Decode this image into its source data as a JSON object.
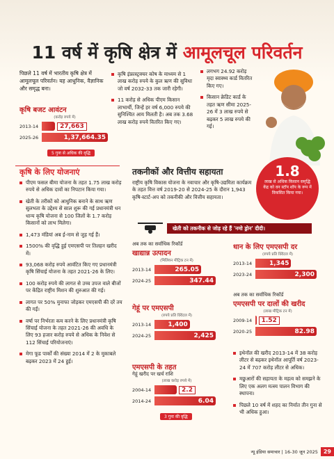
{
  "title": {
    "part1": "11 वर्ष में कृषि क्षेत्र में",
    "part2": "आमूलचूल परिवर्तन"
  },
  "intro": "पिछले 11 वर्ष में भारतीय कृषि क्षेत्र में आमूलचूल परिवर्तन। यह आधुनिक, वैज्ञानिक और समृद्ध बना।",
  "budget": {
    "heading": "कृषि बजट आवंटन",
    "unit": "(करोड़ रुपये में)",
    "categories": [
      "2013-14",
      "2025-26"
    ],
    "values": [
      27663,
      137664.35
    ],
    "value_labels": [
      "27,663",
      "1,37,664.35"
    ],
    "note": "5 गुना से अधिक की वृद्धि"
  },
  "infra_points": [
    "कृषि इंफ्रास्ट्रक्चर कोष के माध्यम से 1 लाख करोड़ रुपये के कुल ऋण की सुविधा जो वर्ष 2032-33 तक जारी रहेगी।",
    "11 करोड़ से अधिक पीएम किसान लाभार्थी, जिन्हें हर वर्ष 6,000 रुपये की सुनिश्चित आय मिलती है। अब तक 3.68 लाख करोड़ रुपये वितरित किए गए।"
  ],
  "card_points": [
    "लगभग 24.92 करोड़ मृदा स्वास्थ्य कार्ड वितरित किए गए।",
    "किसान क्रेडिट कार्ड के तहत ऋण सीमा 2025-26 में 3 लाख रुपये से बढ़कर 5 लाख रुपये की गई।"
  ],
  "schemes": {
    "heading": "कृषि के लिए योजनाएं",
    "points": [
      "पीएम फसल बीमा योजना के तहत 1.75 लाख करोड़ रुपये से अधिक दावों का निपटान किया गया।",
      "खेती के तरीकों को आधुनिक बनाने के साथ ऋण सुलभता के उद्देश्य से साल शुरू की गई प्रधानमंत्री धन धान्य कृषि योजना से 100 जिलों के 1.7 करोड़ किसानों को लाभ मिलेगा।",
      "1,473 मंडियां अब ई-नाम से जुड़ गई हैं।",
      "1500% की वृद्धि हुई एमएसपी पर तिलहन खरीद में।",
      "93,068 करोड़ रुपये आवंटित किए गए प्रधानमंत्री कृषि सिंचाई योजना के तहत 2021-26 के लिए।",
      "100 करोड़ रुपये की लागत से उच्च उपज वाले बीजों पर केंद्रित राष्ट्रीय मिशन की शुरुआत की गई।",
      "लागत पर 50% मुनाफा जोड़कर एमएसपी की दरें तय की गईं।",
      "वर्षा पर निर्भरता कम करने के लिए प्रधानमंत्री कृषि सिंचाई योजना के तहत 2021-26 की अवधि के लिए 93 हजार करोड़ रुपये से अधिक के निवेश से 112 सिंचाई परियोजनाएं।",
      "मेगा फूड पार्कों की संख्या 2014 में 2 के मुकाबले बढ़कर 2023 में 24 हुई।"
    ]
  },
  "tech": {
    "heading": "तकनीकों और वित्तीय सहायता",
    "text": "राष्ट्रीय कृषि विकास योजना के नवाचार और कृषि-उद्यमिता कार्यक्रम के तहत वित्त वर्ष 2019-20 से 2024-25 के दौरान 1,943 कृषि-स्टार्ट-अप को तकनीकी और वित्तीय सहायता।"
  },
  "highlight": {
    "value": 1.8,
    "text": "लाख से अधिक किसान समृद्धि केंद्र को वन स्टॉप शॉप के रूप में विकसित किया गया।"
  },
  "drone_banner": "खेती को तकनीक से जोड़ रहे हैं 'नमो ड्रोन' दीदी।",
  "charts": [
    {
      "kicker": "अब तक का सर्वाधिक रिकॉर्ड",
      "heading": "खाद्यान्न उत्पादन",
      "unit": "(मिलियन मीट्रिक टन में)",
      "categories": [
        "2013-14",
        "2024-25"
      ],
      "values": [
        265.05,
        347.44
      ]
    },
    {
      "heading": "धान के लिए एमएसपी दर",
      "unit": "(रुपये प्रति क्विंटल में)",
      "categories": [
        "2013-14",
        "2023-24"
      ],
      "values": [
        1345,
        2300
      ],
      "value_labels": [
        "1,345",
        "2,300"
      ]
    },
    {
      "heading": "गेहूं पर एमएसपी",
      "unit": "(रुपये प्रति क्विंटल में)",
      "categories": [
        "2013-14",
        "2024-25"
      ],
      "values": [
        1400,
        2425
      ],
      "value_labels": [
        "1,400",
        "2,425"
      ]
    },
    {
      "kicker": "अब तक का सर्वाधिक रिकॉर्ड",
      "heading": "एमएसपी पर दालों की खरीद",
      "unit": "(लाख मीट्रिक टन में)",
      "categories": [
        "2009-14",
        "2020-25"
      ],
      "values": [
        1.52,
        82.98
      ]
    },
    {
      "heading": "एमएसपी के तहत",
      "subheading": "गेहूं खरीद पर खर्च राशि",
      "unit": "(लाख करोड़ रुपये में)",
      "categories": [
        "2004-14",
        "2014-24"
      ],
      "values": [
        2.2,
        6.04
      ],
      "note": "3 गुना की वृद्धि"
    }
  ],
  "more_points": [
    "इथेनॉल की खरीद 2013-14 में 38 करोड़ लीटर से बढ़कर इथेनॉल आपूर्ति वर्ष 2023-24 में 707 करोड़ लीटर से अधिक।",
    "मछुआरों की सहायता के महत्व को समझने के लिए एक अलग मत्स्य पालन विभाग की स्थापना।",
    "पिछले 10 वर्ष में शहद का निर्यात तीन गुना से भी अधिक हुआ।"
  ],
  "footer": {
    "publication": "न्यू इंडिया समाचार | 16-30 जून 2025",
    "page": 29
  }
}
